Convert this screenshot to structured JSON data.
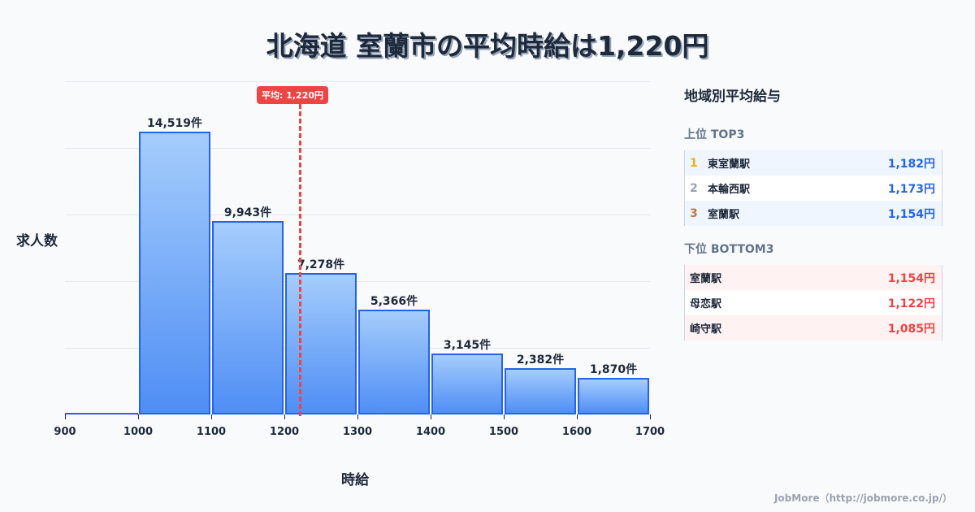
{
  "title": "北海道 室蘭市の平均時給は1,220円",
  "chart_data": {
    "type": "bar",
    "title": "北海道 室蘭市の平均時給は1,220円",
    "xlabel": "時給",
    "ylabel": "求人数",
    "bins": [
      [
        900,
        1000
      ],
      [
        1000,
        1100
      ],
      [
        1100,
        1200
      ],
      [
        1200,
        1300
      ],
      [
        1300,
        1400
      ],
      [
        1400,
        1500
      ],
      [
        1500,
        1600
      ],
      [
        1600,
        1700
      ]
    ],
    "categories": [
      "900-1000",
      "1000-1100",
      "1100-1200",
      "1200-1300",
      "1300-1400",
      "1400-1500",
      "1500-1600",
      "1600-1700"
    ],
    "values": [
      0,
      14519,
      9943,
      7278,
      5366,
      3145,
      2382,
      1870
    ],
    "value_labels": [
      "",
      "14,519件",
      "9,943件",
      "7,278件",
      "5,366件",
      "3,145件",
      "2,382件",
      "1,870件"
    ],
    "x_ticks": [
      "900",
      "1000",
      "1100",
      "1200",
      "1300",
      "1400",
      "1500",
      "1600",
      "1700"
    ],
    "xlim": [
      900,
      1700
    ],
    "ylim": [
      0,
      17000
    ],
    "grid": true,
    "mean": 1220,
    "mean_label": "平均: 1,220円",
    "colors": {
      "bar_border": "#2563eb",
      "bar_top": "#a5cdfc",
      "bar_bottom": "#4f8ef5",
      "mean_line": "#ef4444"
    }
  },
  "panel": {
    "title": "地域別平均給与",
    "top": {
      "heading": "上位 TOP3",
      "items": [
        {
          "rank": "1",
          "name": "東室蘭駅",
          "value": "1,182円",
          "rank_color": "#eab308"
        },
        {
          "rank": "2",
          "name": "本輪西駅",
          "value": "1,173円",
          "rank_color": "#9ca3af"
        },
        {
          "rank": "3",
          "name": "室蘭駅",
          "value": "1,154円",
          "rank_color": "#c2763a"
        }
      ]
    },
    "bottom": {
      "heading": "下位 BOTTOM3",
      "items": [
        {
          "name": "室蘭駅",
          "value": "1,154円"
        },
        {
          "name": "母恋駅",
          "value": "1,122円"
        },
        {
          "name": "崎守駅",
          "value": "1,085円"
        }
      ]
    }
  },
  "footer": "JobMore（http://jobmore.co.jp/）"
}
